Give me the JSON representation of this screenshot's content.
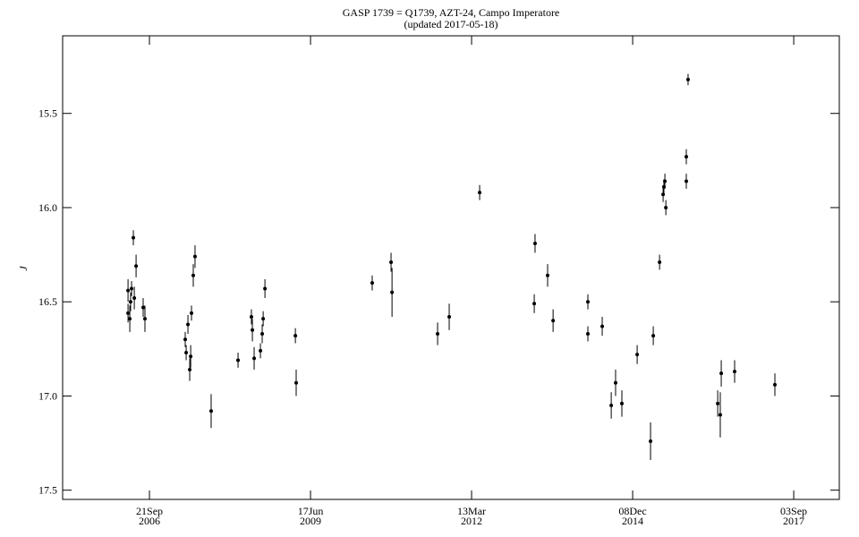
{
  "chart_data": {
    "type": "scatter",
    "title": "GASP 1739 = Q1739, AZT-24, Campo Imperatore",
    "subtitle": "(updated 2017-05-18)",
    "y_label": "J",
    "y_inverted": true,
    "color": "#000000",
    "xlim": [
      2453461,
      2458283
    ],
    "ylim": [
      15.088,
      17.549
    ],
    "xticks": [
      {
        "value": 2454000,
        "label": "21Sep\n2006"
      },
      {
        "value": 2455000,
        "label": "17Jun\n2009"
      },
      {
        "value": 2456000,
        "label": "13Mar\n2012"
      },
      {
        "value": 2457000,
        "label": "08Dec\n2014"
      },
      {
        "value": 2458000,
        "label": "03Sep\n2017"
      }
    ],
    "yticks": [
      15.5,
      {
        "value": 16,
        "label": "16.0"
      },
      16.5,
      {
        "value": 17,
        "label": "17.0"
      },
      17.5
    ],
    "x": [
      2453867,
      2453867,
      2453878,
      2453883,
      2453889,
      2453900,
      2453906,
      2453917,
      2453961,
      2453972,
      2454222,
      2454228,
      2454239,
      2454250,
      2454256,
      2454261,
      2454272,
      2454283,
      2454383,
      2454550,
      2454633,
      2454639,
      2454650,
      2454689,
      2454700,
      2454706,
      2454717,
      2454906,
      2454911,
      2455383,
      2455500,
      2455506,
      2455789,
      2455861,
      2456050,
      2456389,
      2456394,
      2456472,
      2456506,
      2456722,
      2456722,
      2456811,
      2456867,
      2456894,
      2456933,
      2457028,
      2457111,
      2457128,
      2457167,
      2457189,
      2457194,
      2457200,
      2457206,
      2457333,
      2457333,
      2457344,
      2457528,
      2457544,
      2457550,
      2457633,
      2457883
    ],
    "values": [
      16.44,
      16.56,
      16.59,
      16.5,
      16.43,
      16.16,
      16.48,
      16.31,
      16.53,
      16.59,
      16.7,
      16.77,
      16.62,
      16.86,
      16.79,
      16.56,
      16.36,
      16.26,
      17.08,
      16.81,
      16.58,
      16.65,
      16.8,
      16.76,
      16.67,
      16.59,
      16.43,
      16.68,
      16.93,
      16.4,
      16.29,
      16.45,
      16.67,
      16.58,
      15.92,
      16.51,
      16.19,
      16.36,
      16.6,
      16.5,
      16.67,
      16.63,
      17.05,
      16.93,
      17.04,
      16.78,
      17.24,
      16.68,
      16.29,
      15.93,
      15.89,
      15.86,
      16.0,
      15.86,
      15.73,
      15.32,
      17.04,
      17.1,
      16.88,
      16.87,
      16.94
    ],
    "errors": [
      0.06,
      0.05,
      0.07,
      0.05,
      0.04,
      0.04,
      0.06,
      0.06,
      0.05,
      0.07,
      0.04,
      0.04,
      0.05,
      0.06,
      0.06,
      0.04,
      0.06,
      0.06,
      0.09,
      0.04,
      0.04,
      0.06,
      0.06,
      0.04,
      0.05,
      0.04,
      0.05,
      0.04,
      0.07,
      0.04,
      0.05,
      0.13,
      0.06,
      0.07,
      0.04,
      0.05,
      0.05,
      0.06,
      0.06,
      0.04,
      0.04,
      0.05,
      0.07,
      0.07,
      0.07,
      0.05,
      0.1,
      0.05,
      0.04,
      0.04,
      0.04,
      0.04,
      0.04,
      0.04,
      0.04,
      0.03,
      0.07,
      0.12,
      0.07,
      0.06,
      0.06
    ]
  }
}
